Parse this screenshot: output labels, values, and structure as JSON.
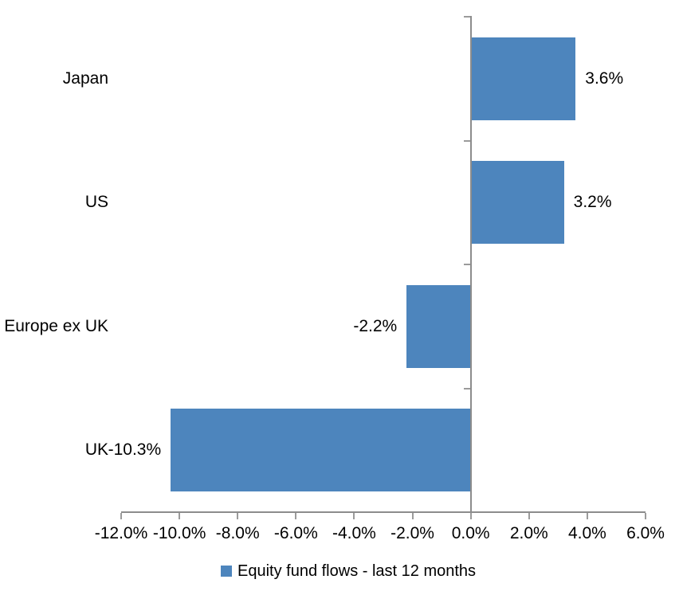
{
  "chart_data": {
    "type": "bar",
    "orientation": "horizontal",
    "title": "",
    "categories": [
      "Japan",
      "US",
      "Europe ex UK",
      "UK"
    ],
    "values": [
      3.6,
      3.2,
      -2.2,
      -10.3
    ],
    "data_labels": [
      "3.6%",
      "3.2%",
      "-2.2%",
      "-10.3%"
    ],
    "xlim": [
      -12,
      6
    ],
    "x_ticks": [
      -12,
      -10,
      -8,
      -6,
      -4,
      -2,
      0,
      2,
      4,
      6
    ],
    "x_tick_labels": [
      "-12.0%",
      "-10.0%",
      "-8.0%",
      "-6.0%",
      "-4.0%",
      "-2.0%",
      "0.0%",
      "2.0%",
      "4.0%",
      "6.0%"
    ],
    "grid": false,
    "legend_position": "bottom",
    "legend": [
      {
        "label": "Equity fund flows - last 12 months",
        "color": "#4d85bd"
      }
    ],
    "bar_color": "#4d85bd",
    "axis_color": "#8c8c8c",
    "text_color": "#000000",
    "background_color": "#ffffff"
  }
}
